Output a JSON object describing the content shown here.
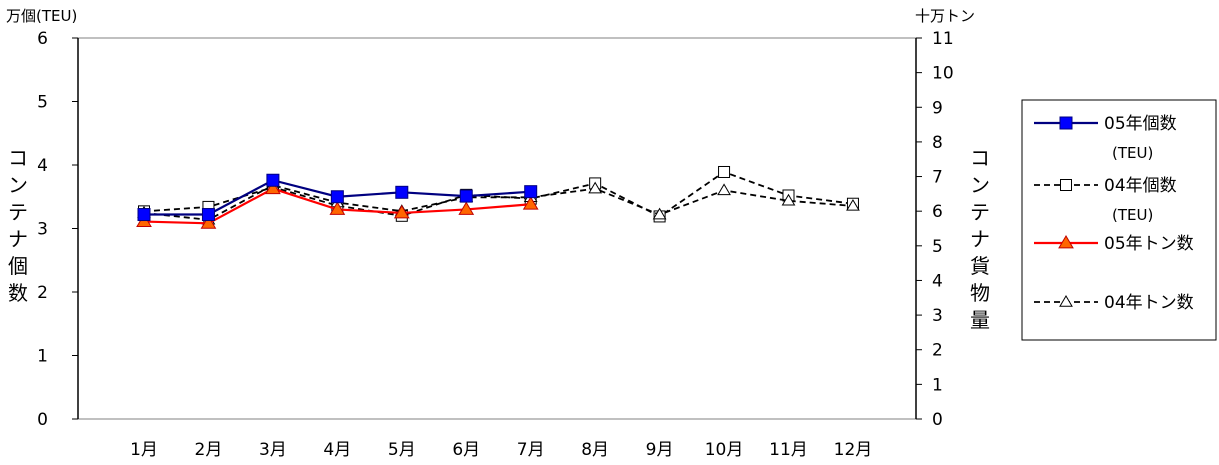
{
  "chart_data": {
    "type": "line",
    "categories": [
      "1月",
      "2月",
      "3月",
      "4月",
      "5月",
      "6月",
      "7月",
      "8月",
      "9月",
      "10月",
      "11月",
      "12月"
    ],
    "left_axis": {
      "unit_label": "万個(TEU)",
      "title_chars": [
        "コ",
        "ン",
        "テ",
        "ナ",
        "個",
        "数"
      ],
      "ylim": [
        0,
        6
      ],
      "ticks": [
        "0",
        "1",
        "2",
        "3",
        "4",
        "5",
        "6"
      ]
    },
    "right_axis": {
      "unit_label": "十万トン",
      "title_chars": [
        "コ",
        "ン",
        "テ",
        "ナ",
        "貨",
        "物",
        "量"
      ],
      "ylim": [
        0,
        11
      ],
      "ticks": [
        "0",
        "1",
        "2",
        "3",
        "4",
        "5",
        "6",
        "7",
        "8",
        "9",
        "10",
        "11"
      ]
    },
    "series": [
      {
        "name": "05年個数",
        "name_sub": "(TEU)",
        "axis": "left",
        "color": "#000080",
        "marker": "filled-square",
        "marker_color": "#0000ff",
        "dashed": false,
        "values": [
          3.22,
          3.22,
          3.76,
          3.5,
          3.57,
          3.51,
          3.58,
          null,
          null,
          null,
          null,
          null
        ]
      },
      {
        "name": "04年個数",
        "name_sub": "(TEU)",
        "axis": "left",
        "color": "#000000",
        "marker": "open-square",
        "marker_color": "#ffffff",
        "dashed": true,
        "values": [
          3.27,
          3.34,
          3.65,
          3.36,
          3.2,
          3.53,
          3.47,
          3.71,
          3.19,
          3.89,
          3.52,
          3.39
        ]
      },
      {
        "name": "05年トン数",
        "name_sub": "",
        "axis": "right",
        "color": "#ff0000",
        "marker": "filled-triangle",
        "marker_color": "#ff6600",
        "dashed": false,
        "values": [
          5.7,
          5.65,
          6.65,
          6.05,
          5.95,
          6.05,
          6.2,
          null,
          null,
          null,
          null,
          null
        ]
      },
      {
        "name": "04年トン数",
        "name_sub": "",
        "axis": "right",
        "color": "#000000",
        "marker": "open-triangle",
        "marker_color": "#ffffff",
        "dashed": true,
        "values": [
          5.95,
          5.75,
          6.75,
          6.25,
          6.0,
          6.4,
          6.4,
          6.65,
          5.9,
          6.6,
          6.3,
          6.15
        ]
      }
    ],
    "legend_position": "right",
    "grid": false
  }
}
